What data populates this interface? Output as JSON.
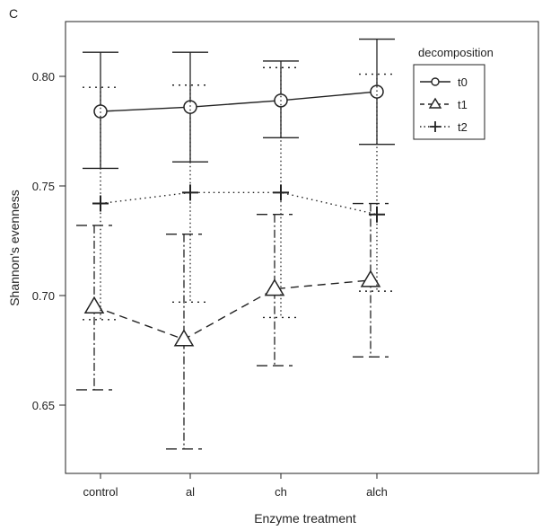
{
  "panel_label": "C",
  "chart_data": {
    "type": "line",
    "xlabel": "Enzyme treatment",
    "ylabel": "Shannon's evenness",
    "categories": [
      "control",
      "al",
      "ch",
      "alch"
    ],
    "ylim": [
      0.615,
      0.825
    ],
    "yticks": [
      0.65,
      0.7,
      0.75,
      0.8
    ],
    "ytick_labels": [
      "0.65",
      "0.70",
      "0.75",
      "0.80"
    ],
    "legend": {
      "title": "decomposition",
      "position": "top-right"
    },
    "series": [
      {
        "name": "t0",
        "marker": "circle",
        "line": "solid",
        "values": [
          0.784,
          0.786,
          0.789,
          0.793
        ],
        "err_low": [
          0.758,
          0.761,
          0.772,
          0.769
        ],
        "err_high": [
          0.811,
          0.811,
          0.807,
          0.817
        ]
      },
      {
        "name": "t1",
        "marker": "triangle",
        "line": "dashed",
        "values": [
          0.695,
          0.68,
          0.703,
          0.707
        ],
        "err_low": [
          0.657,
          0.63,
          0.668,
          0.672
        ],
        "err_high": [
          0.732,
          0.728,
          0.737,
          0.742
        ]
      },
      {
        "name": "t2",
        "marker": "plus",
        "line": "dotted",
        "values": [
          0.742,
          0.747,
          0.747,
          0.737
        ],
        "err_low": [
          0.689,
          0.697,
          0.69,
          0.702
        ],
        "err_high": [
          0.795,
          0.796,
          0.804,
          0.801
        ]
      }
    ]
  }
}
